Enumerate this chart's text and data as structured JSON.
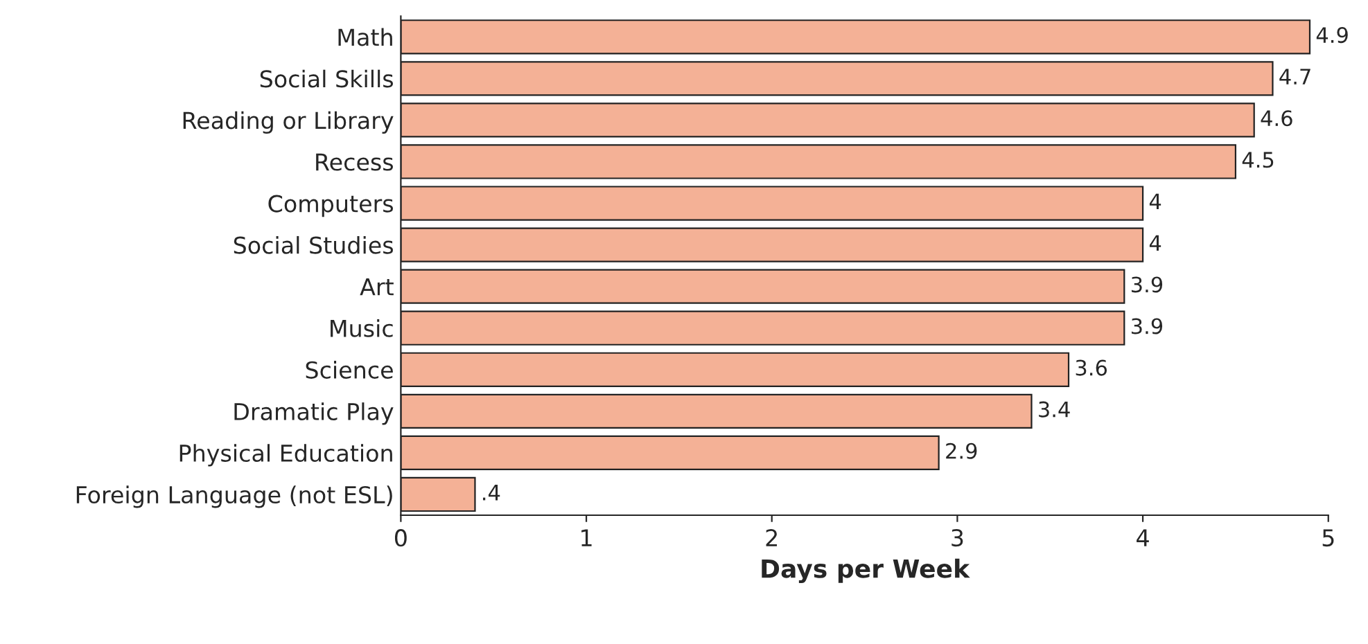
{
  "chart_data": {
    "type": "bar",
    "orientation": "horizontal",
    "xlabel": "Days per Week",
    "categories": [
      "Math",
      "Social Skills",
      "Reading or Library",
      "Recess",
      "Computers",
      "Social Studies",
      "Art",
      "Music",
      "Science",
      "Dramatic Play",
      "Physical Education",
      "Foreign Language (not ESL)"
    ],
    "values": [
      4.9,
      4.7,
      4.6,
      4.5,
      4,
      4,
      3.9,
      3.9,
      3.6,
      3.4,
      2.9,
      0.4
    ],
    "value_labels": [
      "4.9",
      "4.7",
      "4.6",
      "4.5",
      "4",
      "4",
      "3.9",
      "3.9",
      "3.6",
      "3.4",
      "2.9",
      ".4"
    ],
    "color": "#f4b196",
    "xlim": [
      0,
      5
    ],
    "xticks": [
      0,
      1,
      2,
      3,
      4,
      5
    ],
    "grid": false,
    "legend": false
  }
}
